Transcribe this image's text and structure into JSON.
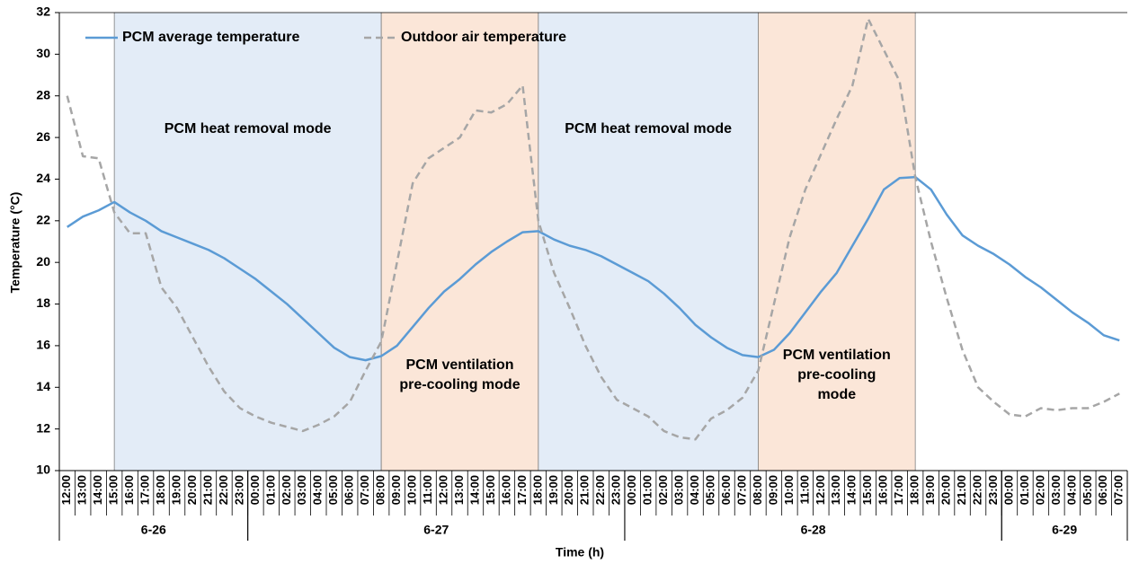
{
  "chart_data": {
    "type": "line",
    "xlabel": "Time (h)",
    "ylabel": "Temperature (°C)",
    "categories": [
      "12:00",
      "13:00",
      "14:00",
      "15:00",
      "16:00",
      "17:00",
      "18:00",
      "19:00",
      "20:00",
      "21:00",
      "22:00",
      "23:00",
      "00:00",
      "01:00",
      "02:00",
      "03:00",
      "04:00",
      "05:00",
      "06:00",
      "07:00",
      "08:00",
      "09:00",
      "10:00",
      "11:00",
      "12:00",
      "13:00",
      "14:00",
      "15:00",
      "16:00",
      "17:00",
      "18:00",
      "19:00",
      "20:00",
      "21:00",
      "22:00",
      "23:00",
      "00:00",
      "01:00",
      "02:00",
      "03:00",
      "04:00",
      "05:00",
      "06:00",
      "07:00",
      "08:00",
      "09:00",
      "10:00",
      "11:00",
      "12:00",
      "13:00",
      "14:00",
      "15:00",
      "16:00",
      "17:00",
      "18:00",
      "19:00",
      "20:00",
      "21:00",
      "22:00",
      "23:00",
      "00:00",
      "01:00",
      "02:00",
      "03:00",
      "04:00",
      "05:00",
      "06:00",
      "07:00"
    ],
    "date_groups": [
      {
        "label": "6-26",
        "start": 0,
        "end": 12
      },
      {
        "label": "6-27",
        "start": 12,
        "end": 36
      },
      {
        "label": "6-28",
        "start": 36,
        "end": 60
      },
      {
        "label": "6-29",
        "start": 60,
        "end": 68
      }
    ],
    "regions": [
      {
        "lines": [
          "PCM heat removal mode"
        ],
        "start": 3,
        "end": 20,
        "color": "#e3ecf7",
        "text_color": "#5b9bd5"
      },
      {
        "lines": [
          "PCM ventilation",
          "pre-cooling mode"
        ],
        "start": 20,
        "end": 30,
        "color": "#fbe6d8",
        "text_color": "#ed7d31"
      },
      {
        "lines": [
          "PCM heat removal mode"
        ],
        "start": 30,
        "end": 44,
        "color": "#e3ecf7",
        "text_color": "#5b9bd5"
      },
      {
        "lines": [
          "PCM ventilation",
          "pre-cooling",
          "mode"
        ],
        "start": 44,
        "end": 54,
        "color": "#fbe6d8",
        "text_color": "#ed7d31"
      }
    ],
    "series": [
      {
        "name": "PCM average temperature",
        "color": "#5b9bd5",
        "dashed": false,
        "values": [
          21.7,
          22.2,
          22.5,
          22.9,
          22.4,
          22.0,
          21.5,
          21.2,
          20.9,
          20.6,
          20.2,
          19.7,
          19.2,
          18.6,
          18.0,
          17.3,
          16.6,
          15.9,
          15.45,
          15.3,
          15.5,
          16.0,
          16.9,
          17.8,
          18.6,
          19.2,
          19.9,
          20.5,
          21.0,
          21.45,
          21.5,
          21.1,
          20.8,
          20.6,
          20.3,
          19.9,
          19.5,
          19.1,
          18.5,
          17.8,
          17.0,
          16.4,
          15.9,
          15.55,
          15.45,
          15.8,
          16.6,
          17.6,
          18.6,
          19.5,
          20.8,
          22.1,
          23.5,
          24.05,
          24.1,
          23.5,
          22.3,
          21.3,
          20.8,
          20.4,
          19.9,
          19.3,
          18.8,
          18.2,
          17.6,
          17.1,
          16.5,
          16.25
        ]
      },
      {
        "name": "Outdoor air temperature",
        "color": "#a6a6a6",
        "dashed": true,
        "values": [
          28.0,
          25.1,
          25.0,
          22.4,
          21.4,
          21.4,
          18.8,
          17.8,
          16.4,
          15.0,
          13.8,
          13.0,
          12.6,
          12.3,
          12.1,
          11.9,
          12.2,
          12.6,
          13.3,
          14.8,
          16.2,
          20.0,
          23.8,
          25.0,
          25.5,
          26.0,
          27.3,
          27.2,
          27.6,
          28.5,
          22.0,
          19.5,
          17.8,
          16.0,
          14.5,
          13.4,
          13.0,
          12.6,
          11.9,
          11.6,
          11.5,
          12.5,
          12.9,
          13.5,
          14.8,
          18.0,
          21.2,
          23.5,
          25.2,
          26.9,
          28.5,
          31.7,
          30.2,
          28.7,
          24.1,
          21.0,
          18.3,
          15.8,
          14.0,
          13.3,
          12.7,
          12.6,
          13.0,
          12.9,
          13.0,
          13.0,
          13.3,
          13.7
        ]
      }
    ],
    "ylim": [
      10,
      32
    ],
    "yticks": [
      10,
      12,
      14,
      16,
      18,
      20,
      22,
      24,
      26,
      28,
      30,
      32
    ],
    "legend": "top-left"
  }
}
